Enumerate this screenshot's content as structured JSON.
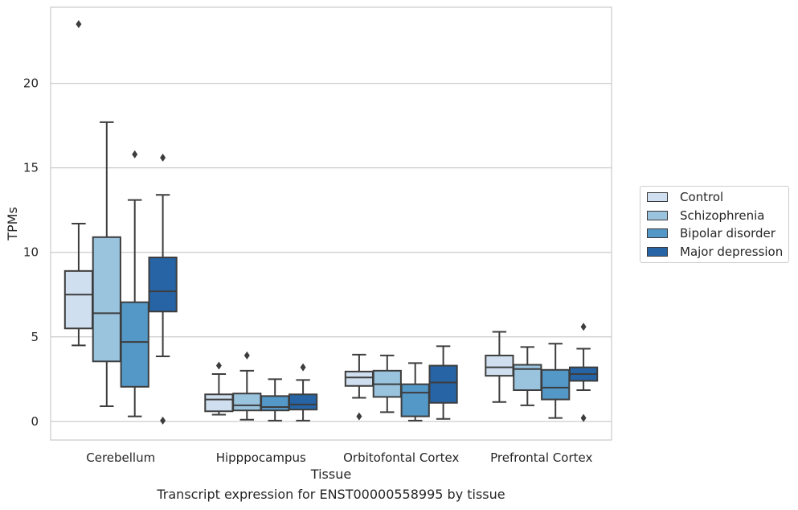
{
  "caption": "Transcript expression for ENST00000558995 by tissue",
  "chart_data": {
    "type": "box",
    "xlabel": "Tissue",
    "ylabel": "TPMs",
    "ylim": [
      -1.1,
      24.5
    ],
    "yticks": [
      0,
      5,
      10,
      15,
      20
    ],
    "grid": "horizontal",
    "legend_position": "right",
    "categories": [
      "Cerebellum",
      "Hipppocampus",
      "Orbitofontal Cortex",
      "Prefrontal Cortex"
    ],
    "series": [
      {
        "name": "Control",
        "color": "#d0dfef",
        "boxes": [
          {
            "whislo": 4.5,
            "q1": 5.5,
            "med": 7.5,
            "q3": 8.9,
            "whishi": 11.7,
            "fliers": [
              23.5
            ]
          },
          {
            "whislo": 0.4,
            "q1": 0.6,
            "med": 1.3,
            "q3": 1.6,
            "whishi": 2.8,
            "fliers": [
              3.3
            ]
          },
          {
            "whislo": 1.4,
            "q1": 2.1,
            "med": 2.6,
            "q3": 2.95,
            "whishi": 3.95,
            "fliers": [
              0.3
            ]
          },
          {
            "whislo": 1.15,
            "q1": 2.7,
            "med": 3.2,
            "q3": 3.9,
            "whishi": 5.3,
            "fliers": []
          }
        ]
      },
      {
        "name": "Schizophrenia",
        "color": "#9ac3de",
        "boxes": [
          {
            "whislo": 0.9,
            "q1": 3.55,
            "med": 6.4,
            "q3": 10.9,
            "whishi": 17.7,
            "fliers": []
          },
          {
            "whislo": 0.1,
            "q1": 0.65,
            "med": 0.95,
            "q3": 1.65,
            "whishi": 3.0,
            "fliers": [
              3.9
            ]
          },
          {
            "whislo": 0.55,
            "q1": 1.45,
            "med": 2.2,
            "q3": 3.0,
            "whishi": 3.9,
            "fliers": []
          },
          {
            "whislo": 0.95,
            "q1": 1.85,
            "med": 3.1,
            "q3": 3.35,
            "whishi": 4.4,
            "fliers": []
          }
        ]
      },
      {
        "name": "Bipolar disorder",
        "color": "#5498c7",
        "boxes": [
          {
            "whislo": 0.3,
            "q1": 2.05,
            "med": 4.7,
            "q3": 7.05,
            "whishi": 13.1,
            "fliers": [
              15.8
            ]
          },
          {
            "whislo": 0.05,
            "q1": 0.65,
            "med": 0.85,
            "q3": 1.5,
            "whishi": 2.5,
            "fliers": []
          },
          {
            "whislo": 0.05,
            "q1": 0.3,
            "med": 1.7,
            "q3": 2.2,
            "whishi": 3.45,
            "fliers": []
          },
          {
            "whislo": 0.2,
            "q1": 1.3,
            "med": 2.0,
            "q3": 3.05,
            "whishi": 4.6,
            "fliers": []
          }
        ]
      },
      {
        "name": "Major depression",
        "color": "#2664a5",
        "boxes": [
          {
            "whislo": 3.85,
            "q1": 6.5,
            "med": 7.7,
            "q3": 9.7,
            "whishi": 13.4,
            "fliers": [
              15.6,
              0.05
            ]
          },
          {
            "whislo": 0.05,
            "q1": 0.7,
            "med": 1.0,
            "q3": 1.6,
            "whishi": 2.45,
            "fliers": [
              3.2
            ]
          },
          {
            "whislo": 0.15,
            "q1": 1.1,
            "med": 2.3,
            "q3": 3.3,
            "whishi": 4.45,
            "fliers": []
          },
          {
            "whislo": 1.85,
            "q1": 2.4,
            "med": 2.8,
            "q3": 3.2,
            "whishi": 4.3,
            "fliers": [
              5.6,
              0.2
            ]
          }
        ]
      }
    ]
  }
}
